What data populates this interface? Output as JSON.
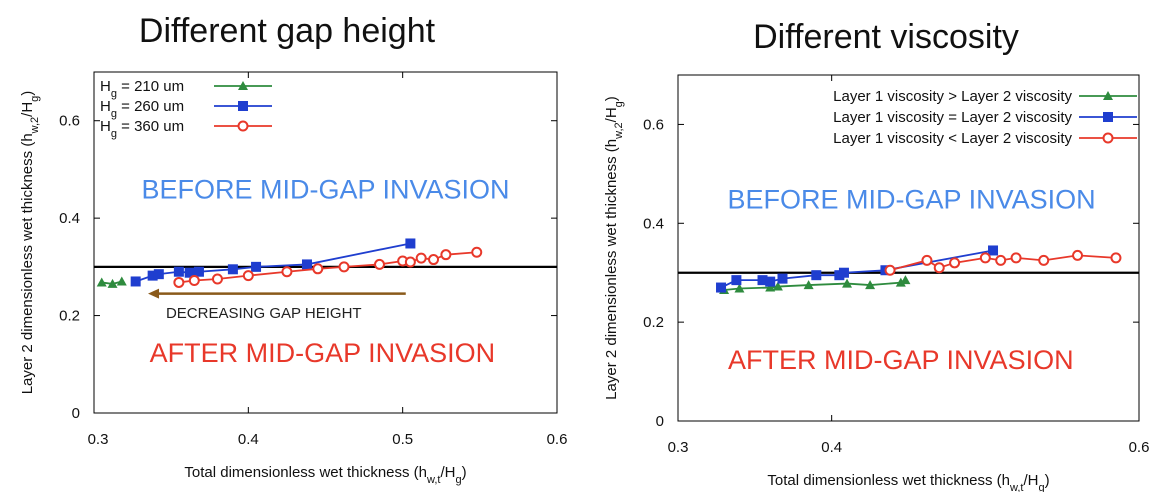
{
  "chart_data": [
    {
      "type": "line",
      "title": "Different gap height",
      "xlabel": "Total dimensionless wet thickness (h_{w,t}/H_g)",
      "ylabel": "Layer 2 dimensionless wet thickness (h_{w,2}/H_g)",
      "xlim": [
        0.3,
        0.6
      ],
      "ylim": [
        0,
        0.7
      ],
      "xticks": [
        "0.3",
        "0.4",
        "0.5",
        "0.6"
      ],
      "yticks": [
        "0",
        "0.2",
        "0.4",
        "0.6"
      ],
      "grid": false,
      "legend": "top-left",
      "reference_line": 0.3,
      "series": [
        {
          "name": "H_g = 210 um",
          "color": "#2e8b3e",
          "marker": "triangle",
          "x": [
            0.305,
            0.312,
            0.318
          ],
          "y": [
            0.268,
            0.265,
            0.27
          ]
        },
        {
          "name": "H_g = 260 um",
          "color": "#1f3ecf",
          "marker": "square",
          "x": [
            0.327,
            0.338,
            0.342,
            0.355,
            0.362,
            0.368,
            0.39,
            0.405,
            0.438,
            0.505
          ],
          "y": [
            0.27,
            0.282,
            0.285,
            0.29,
            0.288,
            0.29,
            0.295,
            0.3,
            0.305,
            0.348
          ]
        },
        {
          "name": "H_g = 360 um",
          "color": "#e8382a",
          "marker": "circle",
          "x": [
            0.355,
            0.365,
            0.38,
            0.4,
            0.425,
            0.445,
            0.462,
            0.485,
            0.5,
            0.505,
            0.512,
            0.52,
            0.528,
            0.548
          ],
          "y": [
            0.268,
            0.272,
            0.275,
            0.282,
            0.29,
            0.296,
            0.3,
            0.305,
            0.312,
            0.31,
            0.318,
            0.315,
            0.325,
            0.33
          ]
        }
      ],
      "annotations": [
        {
          "text": "BEFORE MID-GAP INVASION",
          "color": "#4a8ae8",
          "x": 0.45,
          "y": 0.44
        },
        {
          "text": "AFTER MID-GAP INVASION",
          "color": "#e8382a",
          "x": 0.448,
          "y": 0.105
        },
        {
          "text": "DECREASING GAP HEIGHT",
          "color": "#222222",
          "x": 0.41,
          "y": 0.195
        },
        {
          "type": "arrow",
          "color": "#8a5a1a",
          "x_from": 0.502,
          "x_to": 0.335,
          "y": 0.245
        }
      ]
    },
    {
      "type": "line",
      "title": "Different viscosity",
      "xlabel": "Total dimensionless wet thickness (h_{w,t}/H_g)",
      "ylabel": "Layer 2 dimensionless wet thickness (h_{w,2}/H_g)",
      "xlim": [
        0.3,
        0.6
      ],
      "ylim": [
        0,
        0.7
      ],
      "xticks": [
        "0.3",
        "0.4",
        "0.6"
      ],
      "yticks": [
        "0",
        "0.2",
        "0.4",
        "0.6"
      ],
      "grid": false,
      "legend": "top-right",
      "reference_line": 0.3,
      "series": [
        {
          "name": "Layer 1 viscosity > Layer 2 viscosity",
          "color": "#2e8b3e",
          "marker": "triangle",
          "x": [
            0.33,
            0.34,
            0.36,
            0.365,
            0.385,
            0.41,
            0.425,
            0.445,
            0.448
          ],
          "y": [
            0.265,
            0.268,
            0.27,
            0.272,
            0.275,
            0.278,
            0.275,
            0.28,
            0.285
          ]
        },
        {
          "name": "Layer 1 viscosity = Layer 2 viscosity",
          "color": "#1f3ecf",
          "marker": "square",
          "x": [
            0.328,
            0.338,
            0.355,
            0.36,
            0.368,
            0.39,
            0.405,
            0.408,
            0.435,
            0.505
          ],
          "y": [
            0.27,
            0.285,
            0.285,
            0.282,
            0.288,
            0.295,
            0.295,
            0.3,
            0.305,
            0.345
          ]
        },
        {
          "name": "Layer 1 viscosity < Layer 2 viscosity",
          "color": "#e8382a",
          "marker": "circle",
          "x": [
            0.438,
            0.462,
            0.47,
            0.48,
            0.5,
            0.51,
            0.52,
            0.538,
            0.56,
            0.585
          ],
          "y": [
            0.305,
            0.325,
            0.31,
            0.32,
            0.33,
            0.325,
            0.33,
            0.325,
            0.335,
            0.33
          ]
        }
      ],
      "annotations": [
        {
          "text": "BEFORE MID-GAP INVASION",
          "color": "#4a8ae8",
          "x": 0.452,
          "y": 0.43
        },
        {
          "text": "AFTER MID-GAP INVASION",
          "color": "#e8382a",
          "x": 0.445,
          "y": 0.105
        }
      ]
    }
  ]
}
